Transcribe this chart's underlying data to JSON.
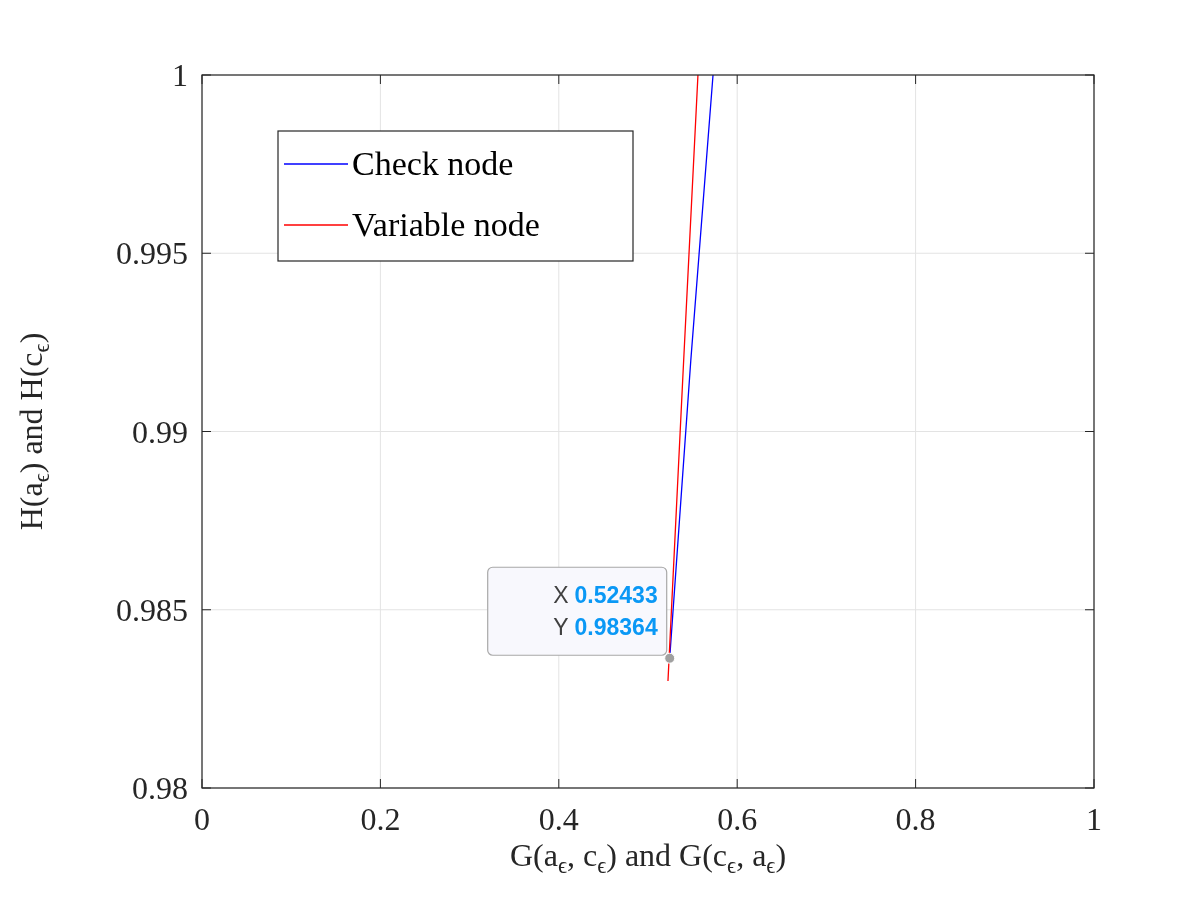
{
  "chart_data": {
    "type": "line",
    "xlabel": "G(a$_{ϵ}$, c$_{ϵ}$) and G(c$_{ϵ}$, a$_{ϵ}$)",
    "ylabel": "H(a$_{ϵ}$) and H(c$_{ϵ}$)",
    "series": [
      {
        "name": "Check node",
        "color": "#0000ff",
        "x": [
          0.5243,
          0.548,
          0.5729
        ],
        "values": [
          0.98364,
          0.992,
          1
        ]
      },
      {
        "name": "Variable node",
        "color": "#ff0000",
        "x": [
          0.5224,
          0.539,
          0.556
        ],
        "values": [
          0.983,
          0.9915,
          1
        ]
      }
    ],
    "xlim": [
      0,
      1
    ],
    "ylim": [
      0.98,
      1
    ],
    "xticks": [
      0,
      0.2,
      0.4,
      0.6,
      0.8,
      1
    ],
    "yticks": [
      0.98,
      0.985,
      0.99,
      0.995,
      1
    ],
    "grid": true,
    "legend": "top left",
    "marker": "none",
    "line_style": "solid",
    "annotations": [
      {
        "text": "X 0.52433\nY 0.98364",
        "x": 0.52433,
        "y": 0.98364
      }
    ]
  }
}
